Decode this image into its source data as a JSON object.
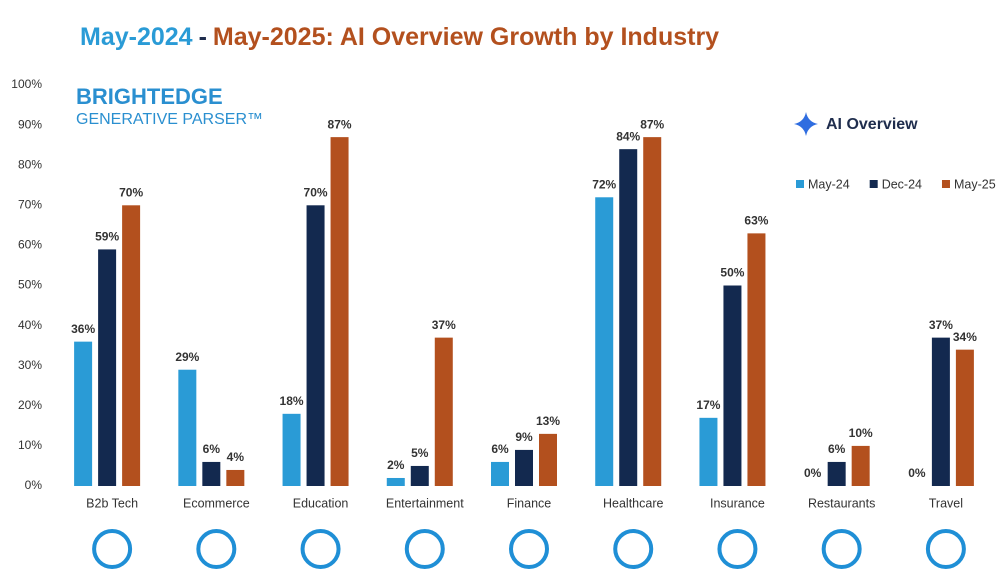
{
  "chart_data": {
    "type": "bar",
    "title": [
      {
        "text": "May-2024",
        "color": "#2a9bd6"
      },
      {
        "text": "-",
        "color": "#1f2d4d"
      },
      {
        "text": "May-2025: AI Overview Growth by Industry",
        "color": "#b3501e"
      }
    ],
    "logo": {
      "name": "BRIGHTEDGE",
      "product": "GENERATIVE PARSER™"
    },
    "badge": "AI Overview",
    "categories": [
      "B2b Tech",
      "Ecommerce",
      "Education",
      "Entertainment",
      "Finance",
      "Healthcare",
      "Insurance",
      "Restaurants",
      "Travel"
    ],
    "series": [
      {
        "name": "May-24",
        "color": "#2a9bd6",
        "values": [
          36,
          29,
          18,
          2,
          6,
          72,
          17,
          0,
          0
        ],
        "value_labels": [
          "36%",
          "29%",
          "18%",
          "2%",
          "6%",
          "72%",
          "17%",
          "0%",
          "0%"
        ]
      },
      {
        "name": "Dec-24",
        "color": "#13294f",
        "values": [
          59,
          6,
          70,
          5,
          9,
          84,
          50,
          6,
          37
        ],
        "value_labels": [
          "59%",
          "6%",
          "70%",
          "5%",
          "9%",
          "84%",
          "50%",
          "6%",
          "37%"
        ]
      },
      {
        "name": "May-25",
        "color": "#b3501e",
        "values": [
          70,
          4,
          87,
          37,
          13,
          87,
          63,
          10,
          34
        ],
        "value_labels": [
          "70%",
          "4%",
          "87%",
          "37%",
          "13%",
          "87%",
          "63%",
          "10%",
          "34%"
        ]
      }
    ],
    "ylim": [
      0,
      100
    ],
    "yticks": [
      {
        "value": 0,
        "label": "0%"
      },
      {
        "value": 10,
        "label": "10%"
      },
      {
        "value": 20,
        "label": "20%"
      },
      {
        "value": 30,
        "label": "30%"
      },
      {
        "value": 40,
        "label": "40%"
      },
      {
        "value": 50,
        "label": "50%"
      },
      {
        "value": 60,
        "label": "60%"
      },
      {
        "value": 70,
        "label": "70%"
      },
      {
        "value": 80,
        "label": "80%"
      },
      {
        "value": 90,
        "label": "90%"
      },
      {
        "value": 100,
        "label": "100%"
      }
    ],
    "grid": false,
    "legend": "top-right"
  }
}
